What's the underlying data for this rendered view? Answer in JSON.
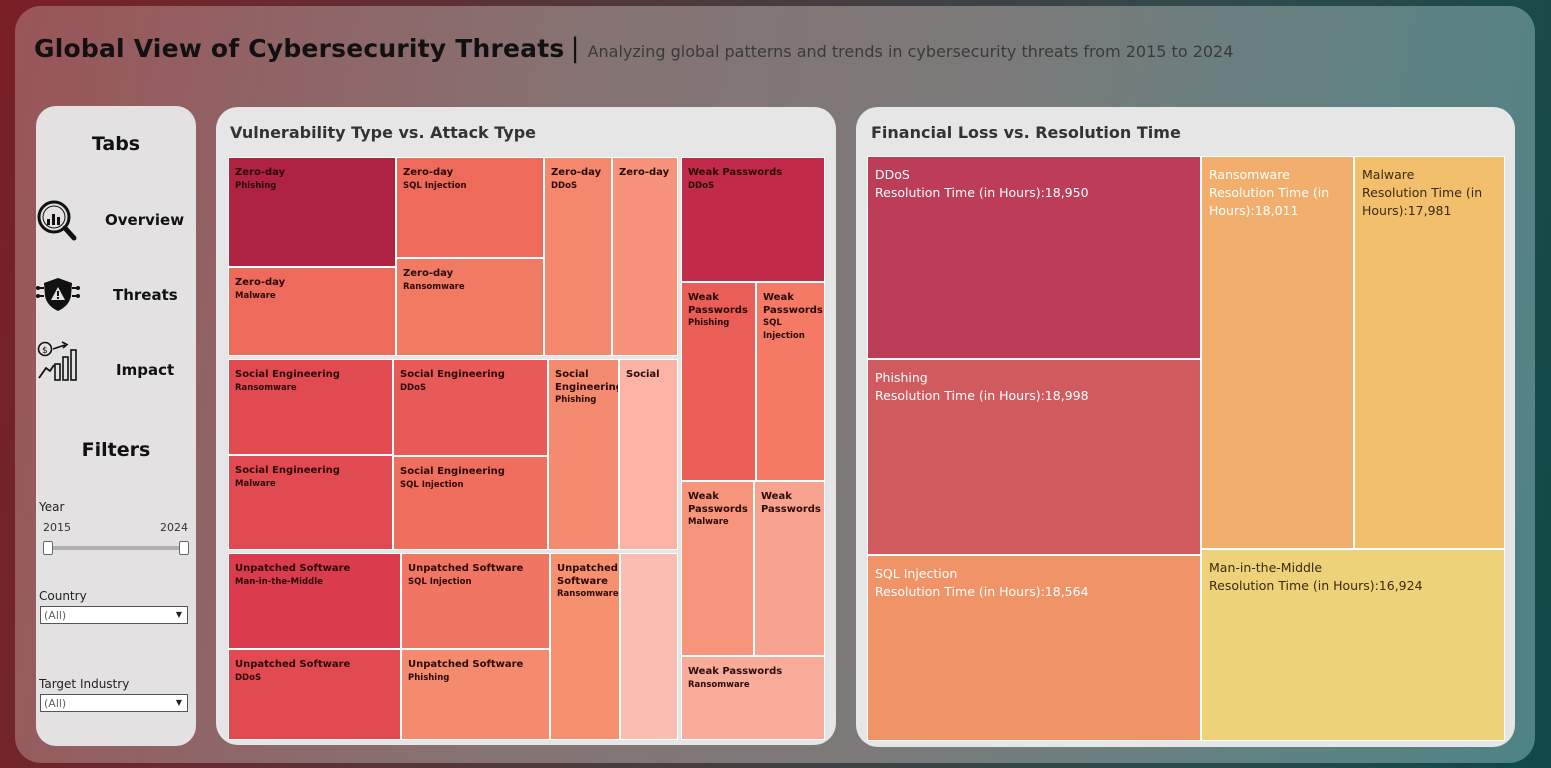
{
  "header": {
    "title": "Global View of Cybersecurity Threats",
    "separator": "|",
    "subtitle": "Analyzing global patterns and trends in cybersecurity threats from 2015 to 2024"
  },
  "sidebar": {
    "tabs_heading": "Tabs",
    "tabs": [
      {
        "label": "Overview",
        "icon": "magnifier-chart-icon"
      },
      {
        "label": "Threats",
        "icon": "shield-alert-icon"
      },
      {
        "label": "Impact",
        "icon": "money-growth-icon"
      }
    ],
    "filters_heading": "Filters",
    "year": {
      "label": "Year",
      "min": "2015",
      "max": "2024"
    },
    "country": {
      "label": "Country",
      "value": "(All)"
    },
    "industry": {
      "label": "Target Industry",
      "value": "(All)"
    }
  },
  "vuln_panel": {
    "title": "Vulnerability Type vs. Attack Type",
    "tiles": [
      {
        "name": "Zero-day",
        "sub": "Phishing",
        "color": "#b02242"
      },
      {
        "name": "Zero-day",
        "sub": "SQL Injection",
        "color": "#ee6a5a"
      },
      {
        "name": "Zero-day",
        "sub": "DDoS",
        "color": "#f5876d"
      },
      {
        "name": "Zero-day",
        "sub": "",
        "color": "#f7937a"
      },
      {
        "name": "Zero-day",
        "sub": "Malware",
        "color": "#ee6a5a"
      },
      {
        "name": "Zero-day",
        "sub": "Ransomware",
        "color": "#f07a62"
      },
      {
        "name": "Social Engineering",
        "sub": "Ransomware",
        "color": "#e24a52"
      },
      {
        "name": "Social Engineering",
        "sub": "DDoS",
        "color": "#e85a58"
      },
      {
        "name": "Social Engineering",
        "sub": "Phishing",
        "color": "#f48a70"
      },
      {
        "name": "Social",
        "sub": "",
        "color": "#fbb3a6"
      },
      {
        "name": "Social Engineering",
        "sub": "Malware",
        "color": "#e24a52"
      },
      {
        "name": "Social Engineering",
        "sub": "SQL Injection",
        "color": "#ef6e5e"
      },
      {
        "name": "Unpatched Software",
        "sub": "Man-in-the-Middle",
        "color": "#da3c4e"
      },
      {
        "name": "Unpatched Software",
        "sub": "SQL Injection",
        "color": "#f17563"
      },
      {
        "name": "Unpatched Software",
        "sub": "Ransomware",
        "color": "#f6906f"
      },
      {
        "name": "",
        "sub": "",
        "color": "#f9bdb2"
      },
      {
        "name": "Unpatched Software",
        "sub": "DDoS",
        "color": "#e24a52"
      },
      {
        "name": "Unpatched Software",
        "sub": "Phishing",
        "color": "#f48a6e"
      },
      {
        "name": "Weak Passwords",
        "sub": "DDoS",
        "color": "#c12a48"
      },
      {
        "name": "Weak Passwords",
        "sub": "Phishing",
        "color": "#ea5e58"
      },
      {
        "name": "Weak Passwords",
        "sub": "SQL Injection",
        "color": "#f47a66"
      },
      {
        "name": "Weak Passwords",
        "sub": "Malware",
        "color": "#f7947c"
      },
      {
        "name": "Weak Passwords",
        "sub": "",
        "color": "#f8a290"
      },
      {
        "name": "Weak Passwords",
        "sub": "Ransomware",
        "color": "#f9ab9a"
      }
    ]
  },
  "loss_panel": {
    "title": "Financial Loss vs. Resolution Time",
    "metric_label": "Resolution Time (in Hours):",
    "tiles": [
      {
        "attack": "DDoS",
        "value": "18,950",
        "color": "#bd3c58",
        "text_color": "#ffffff"
      },
      {
        "attack": "Phishing",
        "value": "18,998",
        "color": "#d05a5e",
        "text_color": "#ffffff"
      },
      {
        "attack": "SQL Injection",
        "value": "18,564",
        "color": "#f09468",
        "text_color": "#ffffff"
      },
      {
        "attack": "Ransomware",
        "value": "18,011",
        "color": "#f2ae6c",
        "text_color": "#ffffff"
      },
      {
        "attack": "Malware",
        "value": "17,981",
        "color": "#f2c06c",
        "text_color": "#3a2a10"
      },
      {
        "attack": "Man-in-the-Middle",
        "value": "16,924",
        "color": "#eed27a",
        "text_color": "#3a2a10"
      }
    ]
  }
}
